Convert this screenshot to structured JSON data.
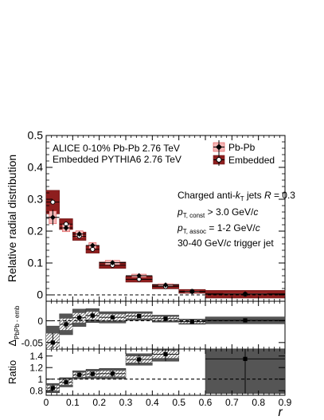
{
  "chart_data": [
    {
      "type": "scatter",
      "panel": "main",
      "ylabel": "Relative radial distribution",
      "ylim": [
        -0.02,
        0.5
      ],
      "yticks": [
        "0",
        "0.1",
        "0.2",
        "0.3",
        "0.4",
        "0.5"
      ],
      "annotations": {
        "header_line1": "ALICE 0-10% Pb-Pb 2.76 TeV",
        "header_line2": "Embedded PYTHIA6 2.76 TeV",
        "jets_prefix": "Charged anti-",
        "jets_k": "k",
        "jets_k_sub": "T",
        "jets_mid": " jets ",
        "jets_R": "R",
        "jets_suffix": " = 0.3",
        "pt": "p",
        "pt_const_sub": "T, const",
        "pt_const_tail": " > 3.0 GeV/",
        "pt_assoc_sub": "T, assoc",
        "pt_assoc_tail": " = 1-2 GeV/",
        "c": "c",
        "trigger_prefix": "30-40 GeV/",
        "trigger_suffix": " trigger jet"
      },
      "legend": {
        "position": "top-right",
        "entries": [
          "Pb-Pb",
          "Embedded"
        ]
      },
      "series": [
        {
          "name": "Pb-Pb",
          "x": [
            0.025,
            0.075,
            0.125,
            0.175,
            0.25,
            0.35,
            0.45,
            0.55,
            0.75
          ],
          "xerr": [
            0.025,
            0.025,
            0.025,
            0.025,
            0.05,
            0.05,
            0.05,
            0.05,
            0.15
          ],
          "y": [
            0.243,
            0.21,
            0.191,
            0.155,
            0.101,
            0.06,
            0.031,
            0.01,
            0.003
          ],
          "yerr_stat": [
            0.024,
            0.01,
            0.008,
            0.007,
            0.005,
            0.004,
            0.003,
            0.002,
            0.001
          ],
          "syst": [
            0.02,
            0.012,
            0.01,
            0.009,
            0.007,
            0.005,
            0.004,
            0.003,
            0.002
          ]
        },
        {
          "name": "Embedded",
          "x": [
            0.025,
            0.075,
            0.125,
            0.175,
            0.25,
            0.35,
            0.45,
            0.55,
            0.75
          ],
          "xerr": [
            0.025,
            0.025,
            0.025,
            0.025,
            0.05,
            0.05,
            0.05,
            0.05,
            0.15
          ],
          "y": [
            0.291,
            0.222,
            0.184,
            0.143,
            0.093,
            0.049,
            0.026,
            0.011,
            0.002
          ],
          "syst": [
            0.037,
            0.017,
            0.013,
            0.012,
            0.01,
            0.009,
            0.007,
            0.006,
            0.012
          ]
        }
      ]
    },
    {
      "type": "scatter",
      "panel": "difference",
      "ylabel": "Δ",
      "ylabel_sub": "PbPb - emb",
      "ylim": [
        -0.065,
        0.045
      ],
      "yticks": [
        "-0.05",
        "0"
      ],
      "series": [
        {
          "x": [
            0.025,
            0.075,
            0.125,
            0.175,
            0.25,
            0.35,
            0.45,
            0.55,
            0.75
          ],
          "y": [
            -0.05,
            -0.008,
            0.007,
            0.012,
            0.008,
            0.011,
            0.005,
            -0.002,
            0.001
          ],
          "yerr_stat": [
            0.022,
            0.01,
            0.008,
            0.007,
            0.005,
            0.004,
            0.003,
            0.002,
            0.001
          ],
          "syst": [
            0.038,
            0.024,
            0.02,
            0.016,
            0.013,
            0.01,
            0.008,
            0.006,
            0.008
          ]
        }
      ]
    },
    {
      "type": "scatter",
      "panel": "ratio",
      "ylabel": "Ratio",
      "xlabel": "r",
      "xlim": [
        0,
        0.9
      ],
      "xticks": [
        "0",
        "0.1",
        "0.2",
        "0.3",
        "0.4",
        "0.5",
        "0.6",
        "0.7",
        "0.8",
        "0.9"
      ],
      "ylim": [
        0.72,
        1.52
      ],
      "yticks": [
        "0.8",
        "1",
        "1.2",
        "1.4"
      ],
      "reference_line": 1,
      "series": [
        {
          "x": [
            0.025,
            0.075,
            0.125,
            0.175,
            0.25,
            0.35,
            0.45,
            0.75
          ],
          "y": [
            0.845,
            0.945,
            1.075,
            1.09,
            1.095,
            1.34,
            1.43,
            1.35
          ],
          "yerr_stat": [
            0.06,
            0.04,
            0.04,
            0.04,
            0.05,
            0.08,
            0.12,
            0.6
          ],
          "syst": [
            0.08,
            0.08,
            0.07,
            0.08,
            0.09,
            0.1,
            0.12,
            0.6
          ]
        }
      ]
    }
  ]
}
